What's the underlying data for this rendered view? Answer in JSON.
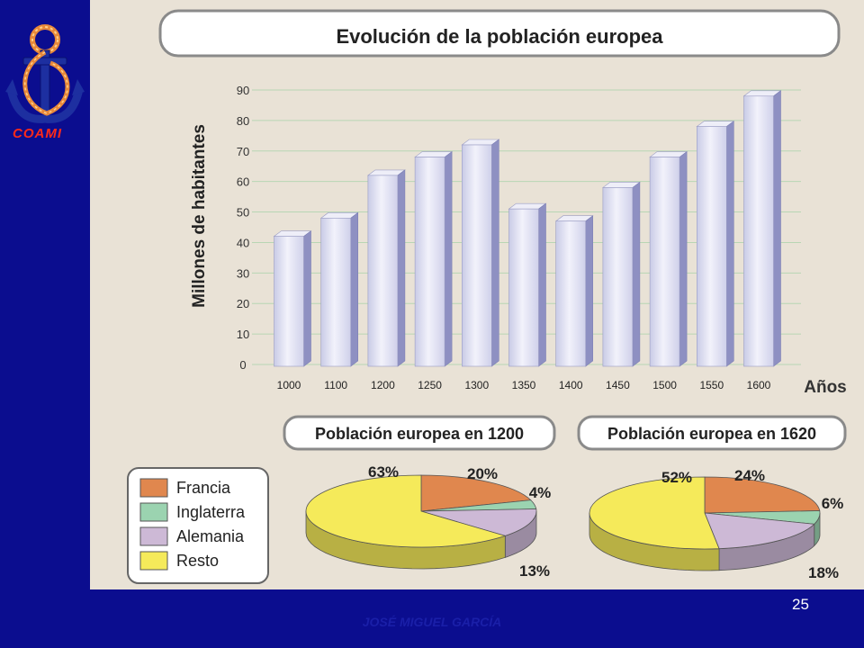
{
  "logo": {
    "text": "COAMI",
    "icon": "anchor-icon"
  },
  "nav": {
    "back_icon": "back-arrow-icon"
  },
  "footer": {
    "page_number": "25",
    "author": "JOSÉ MIGUEL GARCÍA"
  },
  "colors": {
    "slide_bg": "#0b0d8f",
    "paper": "#e9e2d6",
    "bar": "#d7d8ee",
    "francia": "#e0874e",
    "inglaterra": "#9bd3b0",
    "alemania": "#cdb9d6",
    "resto": "#f5ea5a"
  },
  "chart_data": [
    {
      "type": "bar",
      "title": "Evolución de la población europea",
      "ylabel": "Millones de habitantes",
      "xlabel": "Años",
      "ylim": [
        0,
        90
      ],
      "yticks": [
        0,
        10,
        20,
        30,
        40,
        50,
        60,
        70,
        80,
        90
      ],
      "categories": [
        "1000",
        "1100",
        "1200",
        "1250",
        "1300",
        "1350",
        "1400",
        "1450",
        "1500",
        "1550",
        "1600"
      ],
      "values": [
        42,
        48,
        62,
        68,
        72,
        51,
        47,
        58,
        68,
        78,
        88
      ],
      "grid": true
    },
    {
      "type": "pie",
      "title": "Población europea en 1200",
      "labels": [
        "Francia",
        "Inglaterra",
        "Alemania",
        "Resto"
      ],
      "values": [
        20,
        4,
        13,
        63
      ],
      "value_labels": [
        "20%",
        "4%",
        "13%",
        "63%"
      ]
    },
    {
      "type": "pie",
      "title": "Población europea en 1620",
      "labels": [
        "Francia",
        "Inglaterra",
        "Alemania",
        "Resto"
      ],
      "values": [
        24,
        6,
        18,
        52
      ],
      "value_labels": [
        "24%",
        "6%",
        "18%",
        "52%"
      ]
    }
  ],
  "legend": [
    {
      "label": "Francia",
      "color": "#e0874e"
    },
    {
      "label": "Inglaterra",
      "color": "#9bd3b0"
    },
    {
      "label": "Alemania",
      "color": "#cdb9d6"
    },
    {
      "label": "Resto",
      "color": "#f5ea5a"
    }
  ]
}
